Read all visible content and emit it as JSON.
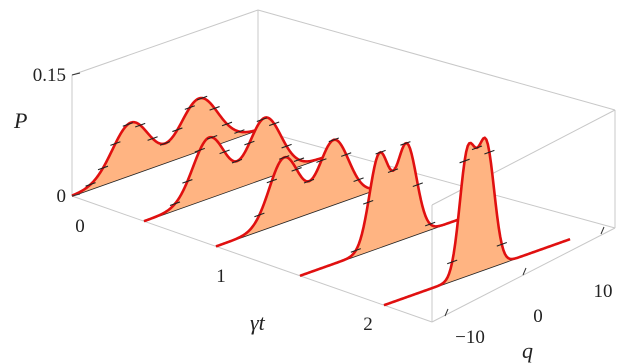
{
  "chart_data": {
    "type": "area",
    "projection": "3d-perspective",
    "x_axis_label": "q",
    "y_axis_label": "γt",
    "z_axis_label": "P",
    "x_ticks": [
      "−10",
      "0",
      "10"
    ],
    "y_ticks": [
      "0",
      "1",
      "2"
    ],
    "z_ticks": [
      "0",
      "0.15"
    ],
    "x_range": [
      -15,
      15
    ],
    "z_range": [
      0,
      0.15
    ],
    "series": [
      {
        "t": 0.0,
        "peaks": [
          {
            "q": -5.5,
            "w": 3.0,
            "a": 0.065
          },
          {
            "q": 5.5,
            "w": 3.0,
            "a": 0.065
          }
        ]
      },
      {
        "t": 0.6,
        "peaks": [
          {
            "q": -4.5,
            "w": 2.6,
            "a": 0.075
          },
          {
            "q": 4.5,
            "w": 2.6,
            "a": 0.075
          }
        ]
      },
      {
        "t": 1.2,
        "peaks": [
          {
            "q": -4.0,
            "w": 2.4,
            "a": 0.08
          },
          {
            "q": 4.0,
            "w": 2.4,
            "a": 0.08
          }
        ]
      },
      {
        "t": 1.9,
        "peaks": [
          {
            "q": -2.2,
            "w": 1.6,
            "a": 0.115
          },
          {
            "q": 2.2,
            "w": 1.6,
            "a": 0.115
          }
        ]
      },
      {
        "t": 2.6,
        "peaks": [
          {
            "q": -1.5,
            "w": 1.3,
            "a": 0.15
          },
          {
            "q": 1.5,
            "w": 1.3,
            "a": 0.15
          }
        ]
      }
    ],
    "fill_color": "#ffb482",
    "curve_color": "#e01010",
    "marker_color": "#222222",
    "baseline_color": "#222222"
  }
}
